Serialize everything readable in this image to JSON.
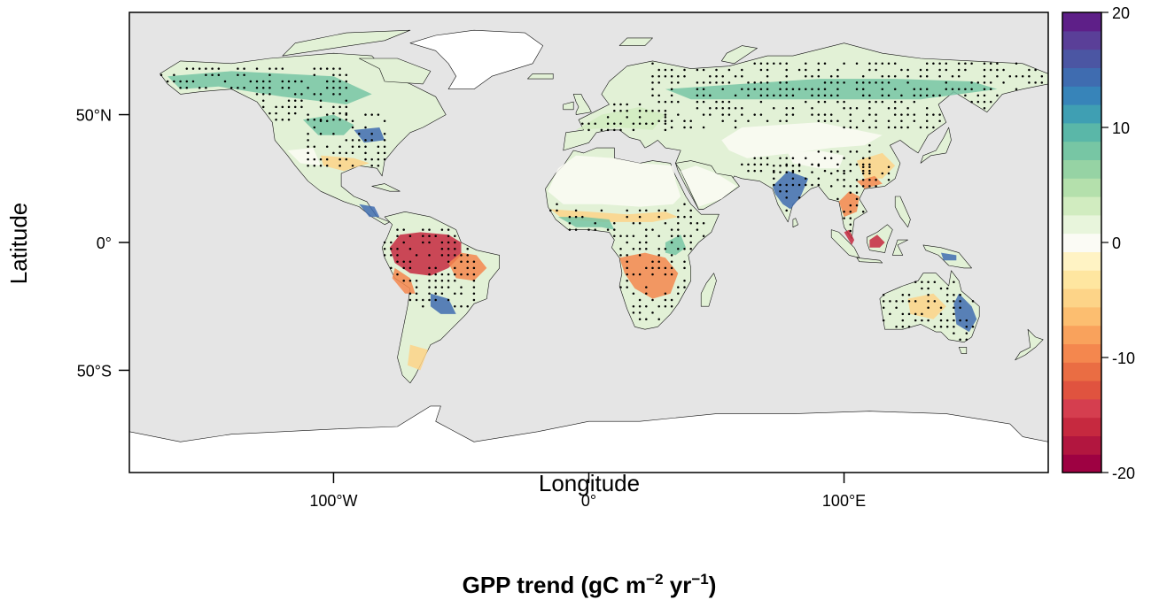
{
  "figure": {
    "xlabel": "Longitude",
    "ylabel": "Latitude",
    "caption": {
      "prefix": "GPP trend (gC m",
      "exp1": "−2",
      "middle": " yr",
      "exp2": "−1",
      "suffix": ")"
    },
    "x_ticks": [
      {
        "value": -100,
        "label": "100°W"
      },
      {
        "value": 0,
        "label": "0°"
      },
      {
        "value": 100,
        "label": "100°E"
      }
    ],
    "y_ticks": [
      {
        "value": 50,
        "label": "50°N"
      },
      {
        "value": 0,
        "label": "0°"
      },
      {
        "value": -50,
        "label": "50°S"
      }
    ],
    "colorbar": {
      "min": -20,
      "max": 20,
      "labels": [
        {
          "value": 20,
          "label": "20"
        },
        {
          "value": 10,
          "label": "10"
        },
        {
          "value": 0,
          "label": "0"
        },
        {
          "value": -10,
          "label": "-10"
        },
        {
          "value": -20,
          "label": "-20"
        }
      ],
      "colors": [
        "#9e0142",
        "#b2163f",
        "#c6293f",
        "#d53e4f",
        "#e0533f",
        "#ea6d43",
        "#f4874e",
        "#f9a25c",
        "#fcbe70",
        "#fdd488",
        "#fee6a0",
        "#fff3c4",
        "#fbfbf5",
        "#e8f5dc",
        "#d1ecc0",
        "#b4e0ac",
        "#96d3a4",
        "#77c6a4",
        "#5ab7a8",
        "#3f9fb3",
        "#3784b9",
        "#3f6cb0",
        "#4b56a3",
        "#5a3f98",
        "#5e1f88"
      ]
    }
  },
  "map_data": {
    "projection": "equirectangular",
    "lon_range": [
      -180,
      180
    ],
    "lat_range": [
      -90,
      90
    ],
    "ocean_color": "#e5e5e5",
    "stipple_note": "black dots mark significant trends",
    "colors": {
      "strong_neg": "#c6293f",
      "neg": "#f4874e",
      "weak_neg": "#fdd488",
      "neutral": "#fbfbf5",
      "weak_pos": "#d1ecc0",
      "pos": "#77c6a4",
      "strong_pos": "#3f6cb0"
    }
  }
}
